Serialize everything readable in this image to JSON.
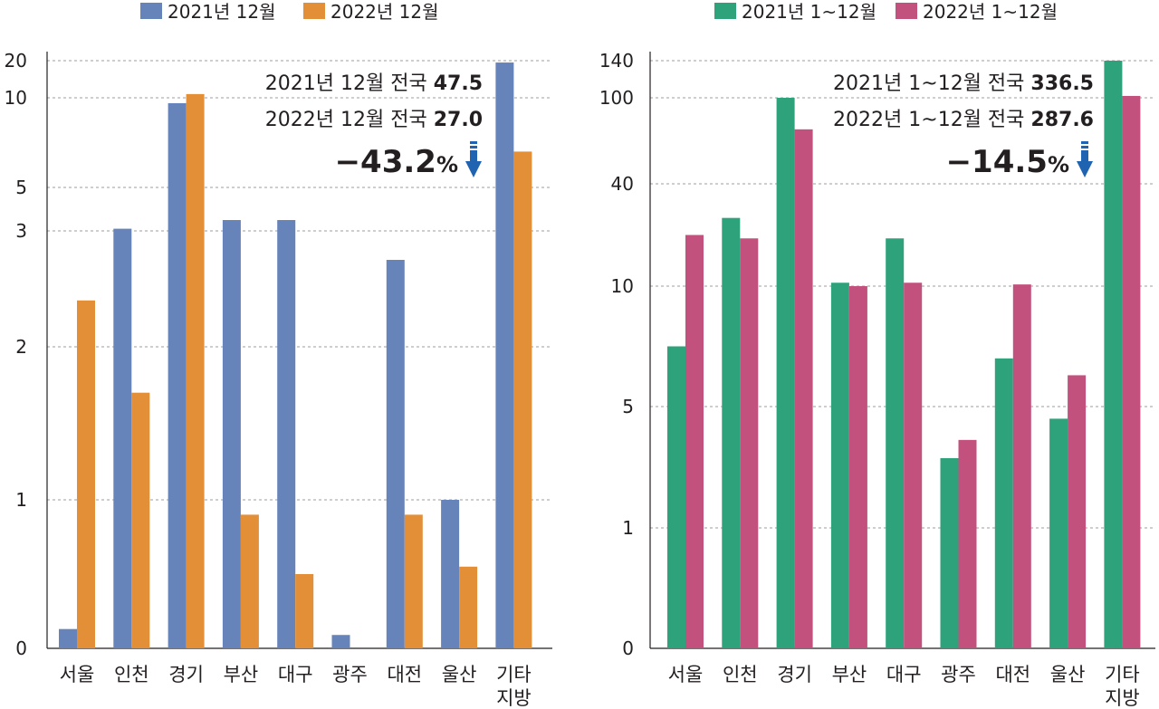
{
  "chart_data": [
    {
      "type": "bar",
      "categories": [
        "서울",
        "인천",
        "경기",
        "부산",
        "대구",
        "광주",
        "대전",
        "울산",
        "기타\n지방"
      ],
      "series": [
        {
          "name": "2021년 12월",
          "color": "#6684b9",
          "values": [
            0.13,
            3.1,
            9.7,
            3.5,
            3.5,
            0.09,
            2.75,
            1.0,
            19.5
          ]
        },
        {
          "name": "2022년 12월",
          "color": "#e38f38",
          "values": [
            2.4,
            1.7,
            11.0,
            0.9,
            0.5,
            0,
            0.9,
            0.55,
            7.0
          ]
        }
      ],
      "y_ticks": [
        0,
        1,
        2,
        3,
        5,
        10,
        20
      ],
      "y_scale": "broken",
      "grid": true,
      "legend_position": "top",
      "annotations": {
        "line1_prefix": "2021년 12월 전국 ",
        "line1_value": "47.5",
        "line2_prefix": "2022년 12월 전국 ",
        "line2_value": "27.0",
        "change_value": "−43.2",
        "change_unit": "%"
      }
    },
    {
      "type": "bar",
      "categories": [
        "서울",
        "인천",
        "경기",
        "부산",
        "대구",
        "광주",
        "대전",
        "울산",
        "기타\n지방"
      ],
      "series": [
        {
          "name": "2021년 1~12월",
          "color": "#2ea27b",
          "values": [
            7.5,
            30,
            100,
            11,
            24,
            3.3,
            7,
            4.6,
            140
          ]
        },
        {
          "name": "2022년 1~12월",
          "color": "#c3517e",
          "values": [
            25,
            24,
            78,
            10,
            11,
            3.9,
            10.5,
            6.3,
            102
          ]
        }
      ],
      "y_ticks": [
        0,
        1,
        5,
        10,
        40,
        100,
        140
      ],
      "y_scale": "broken",
      "grid": true,
      "legend_position": "top",
      "annotations": {
        "line1_prefix": "2021년 1~12월 전국 ",
        "line1_value": "336.5",
        "line2_prefix": "2022년 1~12월 전국 ",
        "line2_value": "287.6",
        "change_value": "−14.5",
        "change_unit": "%"
      }
    }
  ]
}
